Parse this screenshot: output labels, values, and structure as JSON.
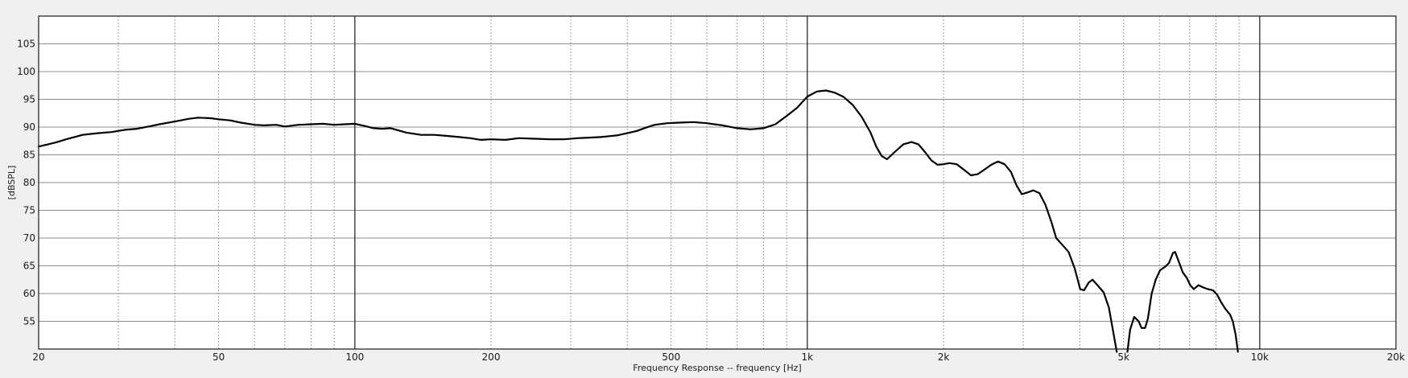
{
  "chart_data": {
    "type": "line",
    "title": "",
    "xlabel": "Frequency Response -- frequency [Hz]",
    "ylabel": "[dBSPL]",
    "x_scale": "log",
    "xlim": [
      20,
      20000
    ],
    "ylim": [
      50,
      110
    ],
    "x_ticks": [
      {
        "value": 20,
        "label": "20"
      },
      {
        "value": 50,
        "label": "50"
      },
      {
        "value": 100,
        "label": "100"
      },
      {
        "value": 200,
        "label": "200"
      },
      {
        "value": 500,
        "label": "500"
      },
      {
        "value": 1000,
        "label": "1k"
      },
      {
        "value": 2000,
        "label": "2k"
      },
      {
        "value": 5000,
        "label": "5k"
      },
      {
        "value": 10000,
        "label": "10k"
      },
      {
        "value": 20000,
        "label": "20k"
      }
    ],
    "y_ticks": [
      55,
      60,
      65,
      70,
      75,
      80,
      85,
      90,
      95,
      100,
      105
    ],
    "grid": true,
    "legend": "none",
    "colors": {
      "background": "#f0f0f0",
      "plot_background": "#ffffff",
      "major_grid": "#1a1a1a",
      "minor_grid": "#8c8c8c",
      "horizontal_grid": "#8c8c8c",
      "line": "#000000"
    },
    "series": [
      {
        "points": [
          [
            20,
            86.5
          ],
          [
            21,
            86.9
          ],
          [
            22,
            87.3
          ],
          [
            23,
            87.8
          ],
          [
            24,
            88.2
          ],
          [
            25,
            88.6
          ],
          [
            27,
            88.9
          ],
          [
            29,
            89.1
          ],
          [
            31,
            89.5
          ],
          [
            33,
            89.7
          ],
          [
            35,
            90.1
          ],
          [
            37,
            90.5
          ],
          [
            40,
            91.0
          ],
          [
            43,
            91.5
          ],
          [
            45,
            91.7
          ],
          [
            48,
            91.6
          ],
          [
            50,
            91.4
          ],
          [
            53,
            91.2
          ],
          [
            56,
            90.8
          ],
          [
            60,
            90.4
          ],
          [
            63,
            90.3
          ],
          [
            67,
            90.4
          ],
          [
            70,
            90.1
          ],
          [
            75,
            90.4
          ],
          [
            80,
            90.5
          ],
          [
            85,
            90.6
          ],
          [
            90,
            90.4
          ],
          [
            95,
            90.5
          ],
          [
            100,
            90.6
          ],
          [
            105,
            90.2
          ],
          [
            110,
            89.8
          ],
          [
            115,
            89.7
          ],
          [
            120,
            89.8
          ],
          [
            130,
            89.0
          ],
          [
            140,
            88.6
          ],
          [
            150,
            88.6
          ],
          [
            160,
            88.4
          ],
          [
            170,
            88.2
          ],
          [
            180,
            88.0
          ],
          [
            190,
            87.7
          ],
          [
            200,
            87.8
          ],
          [
            215,
            87.7
          ],
          [
            230,
            88.0
          ],
          [
            250,
            87.9
          ],
          [
            270,
            87.8
          ],
          [
            290,
            87.8
          ],
          [
            310,
            88.0
          ],
          [
            330,
            88.1
          ],
          [
            350,
            88.2
          ],
          [
            380,
            88.5
          ],
          [
            400,
            88.9
          ],
          [
            420,
            89.3
          ],
          [
            440,
            89.9
          ],
          [
            460,
            90.4
          ],
          [
            490,
            90.7
          ],
          [
            520,
            90.8
          ],
          [
            560,
            90.9
          ],
          [
            600,
            90.7
          ],
          [
            650,
            90.3
          ],
          [
            700,
            89.8
          ],
          [
            750,
            89.6
          ],
          [
            800,
            89.8
          ],
          [
            850,
            90.5
          ],
          [
            900,
            92.0
          ],
          [
            950,
            93.5
          ],
          [
            1000,
            95.5
          ],
          [
            1050,
            96.4
          ],
          [
            1100,
            96.6
          ],
          [
            1150,
            96.2
          ],
          [
            1200,
            95.5
          ],
          [
            1260,
            94.0
          ],
          [
            1320,
            91.8
          ],
          [
            1380,
            89.0
          ],
          [
            1420,
            86.5
          ],
          [
            1460,
            84.8
          ],
          [
            1500,
            84.2
          ],
          [
            1560,
            85.5
          ],
          [
            1630,
            86.9
          ],
          [
            1700,
            87.3
          ],
          [
            1760,
            86.9
          ],
          [
            1820,
            85.5
          ],
          [
            1880,
            84.0
          ],
          [
            1940,
            83.2
          ],
          [
            2000,
            83.3
          ],
          [
            2060,
            83.5
          ],
          [
            2140,
            83.3
          ],
          [
            2220,
            82.3
          ],
          [
            2300,
            81.3
          ],
          [
            2380,
            81.5
          ],
          [
            2460,
            82.3
          ],
          [
            2550,
            83.2
          ],
          [
            2640,
            83.8
          ],
          [
            2730,
            83.3
          ],
          [
            2820,
            81.9
          ],
          [
            2900,
            79.5
          ],
          [
            2980,
            77.9
          ],
          [
            3060,
            78.2
          ],
          [
            3160,
            78.6
          ],
          [
            3260,
            78.1
          ],
          [
            3360,
            76.0
          ],
          [
            3460,
            73.0
          ],
          [
            3550,
            70.0
          ],
          [
            3660,
            68.8
          ],
          [
            3780,
            67.5
          ],
          [
            3900,
            64.5
          ],
          [
            4010,
            60.8
          ],
          [
            4090,
            60.6
          ],
          [
            4190,
            62.0
          ],
          [
            4270,
            62.5
          ],
          [
            4380,
            61.5
          ],
          [
            4520,
            60.2
          ],
          [
            4640,
            57.5
          ],
          [
            4760,
            52.5
          ],
          [
            4830,
            49.5
          ],
          [
            null,
            null
          ],
          [
            5100,
            49.5
          ],
          [
            5170,
            53.5
          ],
          [
            5280,
            55.8
          ],
          [
            5400,
            55.0
          ],
          [
            5480,
            53.8
          ],
          [
            5580,
            53.8
          ],
          [
            5660,
            55.5
          ],
          [
            5770,
            60.0
          ],
          [
            5890,
            62.5
          ],
          [
            6020,
            64.2
          ],
          [
            6170,
            64.8
          ],
          [
            6300,
            65.5
          ],
          [
            6430,
            67.3
          ],
          [
            6500,
            67.5
          ],
          [
            6640,
            65.5
          ],
          [
            6760,
            63.8
          ],
          [
            6900,
            62.8
          ],
          [
            7020,
            61.5
          ],
          [
            7150,
            60.8
          ],
          [
            7320,
            61.5
          ],
          [
            7500,
            61.1
          ],
          [
            7680,
            60.8
          ],
          [
            7880,
            60.6
          ],
          [
            8050,
            59.8
          ],
          [
            8220,
            58.4
          ],
          [
            8400,
            57.2
          ],
          [
            8600,
            56.2
          ],
          [
            8720,
            55.0
          ],
          [
            8850,
            52.5
          ],
          [
            8950,
            49.5
          ]
        ]
      }
    ]
  }
}
